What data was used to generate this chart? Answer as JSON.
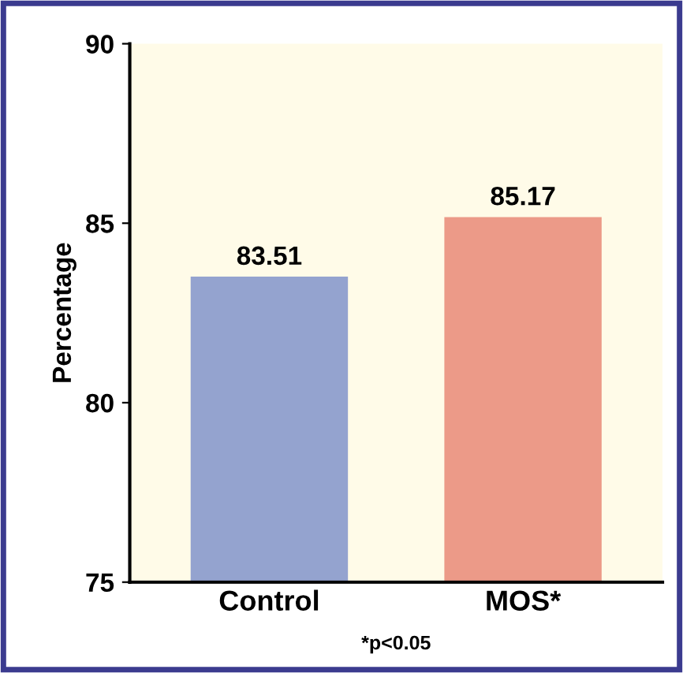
{
  "chart_data": {
    "type": "bar",
    "ylabel": "Percentage",
    "categories": [
      "Control",
      "MOS*"
    ],
    "values": [
      83.51,
      85.17
    ],
    "colors": [
      "#94a3cf",
      "#ec9a88"
    ],
    "ylim": [
      75,
      90
    ],
    "yticks": [
      75,
      80,
      85,
      90
    ],
    "data_labels": true,
    "grid": false,
    "legend": false,
    "annotations": [
      "*p<0.05"
    ]
  }
}
